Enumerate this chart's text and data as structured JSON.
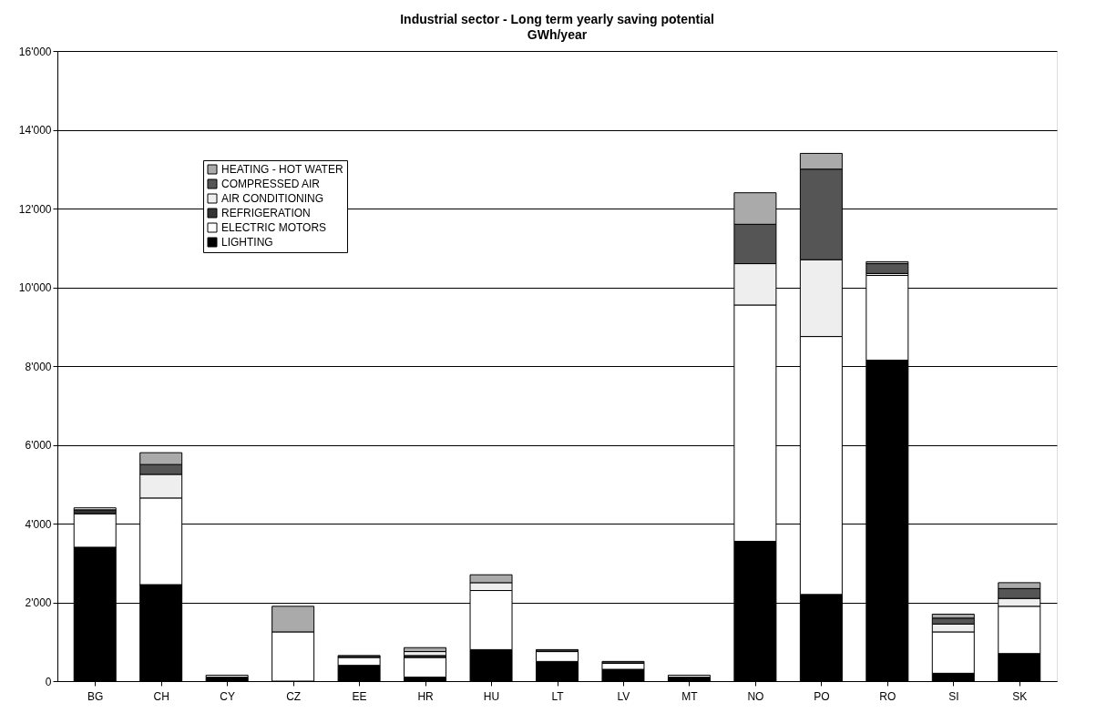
{
  "chart_data": {
    "type": "bar",
    "stacked": true,
    "title": "Industrial sector - Long term yearly saving potential",
    "subtitle": "GWh/year",
    "categories": [
      "BG",
      "CH",
      "CY",
      "CZ",
      "EE",
      "HR",
      "HU",
      "LT",
      "LV",
      "MT",
      "NO",
      "PO",
      "RO",
      "SI",
      "SK"
    ],
    "series": [
      {
        "name": "LIGHTING",
        "color": "#000000",
        "values": [
          3400,
          2450,
          100,
          null,
          400,
          100,
          800,
          500,
          300,
          100,
          3550,
          2200,
          8150,
          200,
          700
        ]
      },
      {
        "name": "ELECTRIC MOTORS",
        "color": "#ffffff",
        "values": [
          850,
          2200,
          50,
          1250,
          200,
          500,
          1500,
          250,
          150,
          50,
          6000,
          6550,
          2150,
          1050,
          1200
        ]
      },
      {
        "name": "REFRIGERATION",
        "color": "#333333",
        "values": [
          100,
          null,
          null,
          null,
          50,
          50,
          null,
          50,
          50,
          null,
          null,
          null,
          null,
          null,
          null
        ]
      },
      {
        "name": "AIR CONDITIONING",
        "color": "#eeeeee",
        "values": [
          50,
          600,
          null,
          null,
          null,
          100,
          200,
          null,
          null,
          null,
          1050,
          1950,
          50,
          200,
          200
        ]
      },
      {
        "name": "COMPRESSED AIR",
        "color": "#555555",
        "values": [
          null,
          250,
          null,
          null,
          null,
          null,
          null,
          null,
          null,
          null,
          1000,
          2300,
          250,
          150,
          250
        ]
      },
      {
        "name": "HEATING - HOT WATER",
        "color": "#aaaaaa",
        "values": [
          null,
          300,
          null,
          650,
          null,
          100,
          200,
          null,
          null,
          null,
          800,
          400,
          50,
          100,
          150
        ]
      }
    ],
    "ylim": [
      0,
      16000
    ],
    "yticks": [
      0,
      {
        "value": 2000,
        "label": "2'000"
      },
      {
        "value": 4000,
        "label": "4'000"
      },
      {
        "value": 6000,
        "label": "6'000"
      },
      {
        "value": 8000,
        "label": "8'000"
      },
      {
        "value": 10000,
        "label": "10'000"
      },
      {
        "value": 12000,
        "label": "12'000"
      },
      {
        "value": 14000,
        "label": "14'000"
      },
      {
        "value": 16000,
        "label": "16'000"
      }
    ],
    "grid": "y",
    "legend": "top left"
  }
}
